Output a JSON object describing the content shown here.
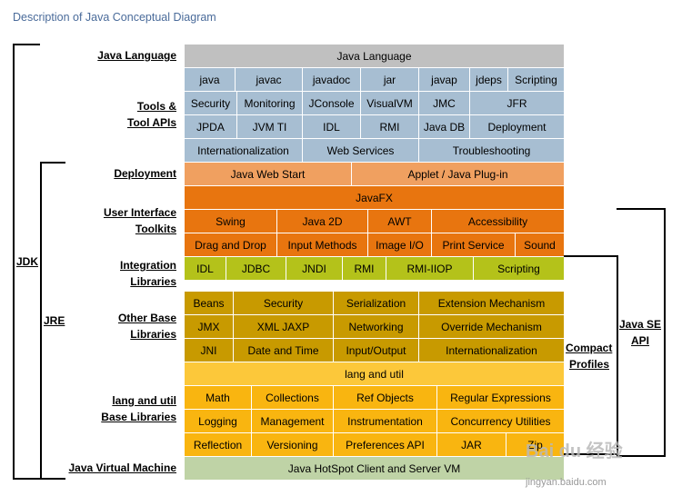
{
  "title": "Description of Java Conceptual Diagram",
  "colors": {
    "gray": "#c0c0c0",
    "blue": "#a7bed2",
    "orange_light": "#f0a060",
    "orange": "#e8750f",
    "green": "#b4c21a",
    "brown": "#c89a00",
    "yellow_light": "#fcc83a",
    "yellow": "#f9b510",
    "green_light": "#bfd3a6"
  },
  "labels": {
    "java_language": "Java Language",
    "tools_line1": "Tools &",
    "tools_line2": "Tool APIs",
    "deployment": "Deployment",
    "ui_line1": "User Interface",
    "ui_line2": "Toolkits",
    "integration_line1": "Integration",
    "integration_line2": "Libraries",
    "other_line1": "Other Base",
    "other_line2": "Libraries",
    "lang_line1": "lang and util",
    "lang_line2": "Base Libraries",
    "jvm": "Java Virtual Machine",
    "jdk": "JDK",
    "jre": "JRE",
    "compact_line1": "Compact",
    "compact_line2": "Profiles",
    "javase_line1": "Java SE",
    "javase_line2": "API"
  },
  "rows": {
    "r0": [
      "Java Language"
    ],
    "r1": [
      "java",
      "javac",
      "javadoc",
      "jar",
      "javap",
      "jdeps",
      "Scripting"
    ],
    "r2": [
      "Security",
      "Monitoring",
      "JConsole",
      "VisualVM",
      "JMC",
      "JFR"
    ],
    "r3": [
      "JPDA",
      "JVM TI",
      "IDL",
      "RMI",
      "Java DB",
      "Deployment"
    ],
    "r4": [
      "Internationalization",
      "Web Services",
      "Troubleshooting"
    ],
    "r5": [
      "Java Web Start",
      "Applet / Java Plug-in"
    ],
    "r6": [
      "JavaFX"
    ],
    "r7": [
      "Swing",
      "Java 2D",
      "AWT",
      "Accessibility"
    ],
    "r8": [
      "Drag and Drop",
      "Input Methods",
      "Image I/O",
      "Print Service",
      "Sound"
    ],
    "r9": [
      "IDL",
      "JDBC",
      "JNDI",
      "RMI",
      "RMI-IIOP",
      "Scripting"
    ],
    "r10": [
      "Beans",
      "Security",
      "Serialization",
      "Extension Mechanism"
    ],
    "r11": [
      "JMX",
      "XML JAXP",
      "Networking",
      "Override Mechanism"
    ],
    "r12": [
      "JNI",
      "Date and Time",
      "Input/Output",
      "Internationalization"
    ],
    "r13": [
      "lang and util"
    ],
    "r14": [
      "Math",
      "Collections",
      "Ref Objects",
      "Regular Expressions"
    ],
    "r15": [
      "Logging",
      "Management",
      "Instrumentation",
      "Concurrency Utilities"
    ],
    "r16": [
      "Reflection",
      "Versioning",
      "Preferences API",
      "JAR",
      "Zip"
    ],
    "r17": [
      "Java HotSpot Client and Server VM"
    ]
  },
  "watermark": {
    "logo": "Bai du 经验",
    "url": "jingyan.baidu.com"
  }
}
